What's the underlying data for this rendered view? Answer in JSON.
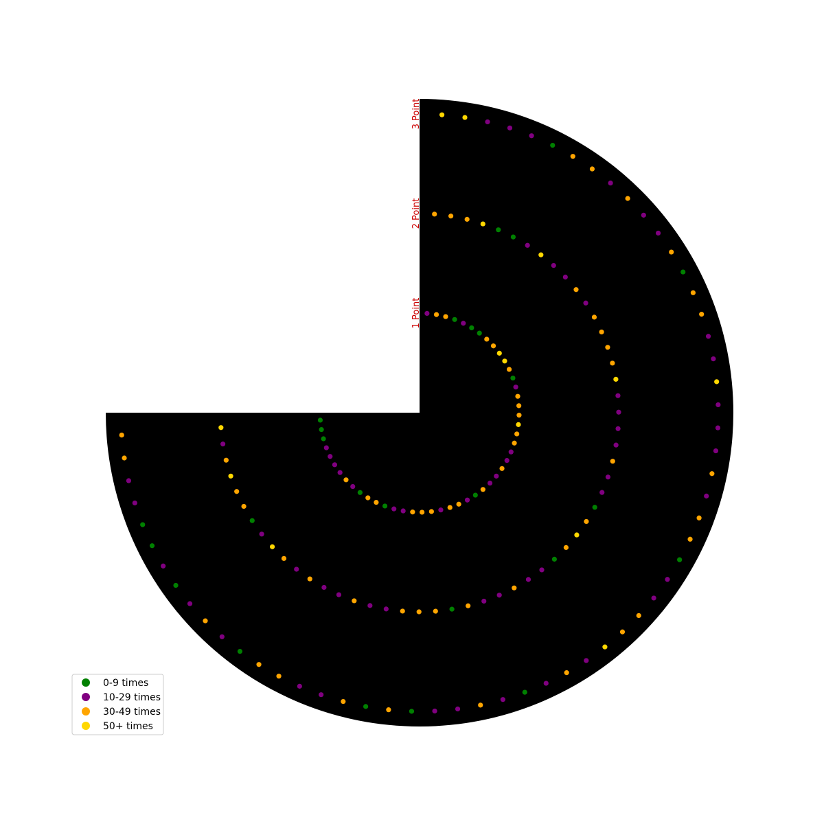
{
  "chart_data": {
    "type": "scatter",
    "projection": "polar",
    "angular_span_degrees": 270,
    "angular_start": "12 o'clock",
    "angular_direction": "clockwise",
    "angular_end": "9 o'clock",
    "background": "#000000",
    "grid": false,
    "ring_label_color": "#cc0000",
    "legend_position": "lower-left",
    "bins": [
      {
        "label": "0-9 times",
        "color": "#008000"
      },
      {
        "label": "10-29 times",
        "color": "#800080"
      },
      {
        "label": "30-49 times",
        "color": "#ffa500"
      },
      {
        "label": "50+ times",
        "color": "#ffd700"
      }
    ],
    "rings": [
      {
        "label": "1 Point",
        "radius": 1,
        "points": [
          1,
          2,
          2,
          0,
          1,
          0,
          0,
          2,
          2,
          3,
          3,
          2,
          0,
          1,
          2,
          2,
          2,
          3,
          2,
          2,
          1,
          1,
          2,
          1,
          1,
          2,
          0,
          1,
          2,
          2,
          1,
          2,
          2,
          2,
          1,
          1,
          0,
          2,
          2,
          0,
          1,
          2,
          1,
          1,
          1,
          1,
          0,
          0,
          0
        ]
      },
      {
        "label": "2 Point",
        "radius": 2,
        "points": [
          2,
          2,
          2,
          3,
          0,
          0,
          1,
          3,
          1,
          1,
          2,
          1,
          2,
          2,
          2,
          2,
          3,
          1,
          1,
          1,
          1,
          2,
          1,
          1,
          0,
          2,
          3,
          2,
          0,
          1,
          1,
          2,
          1,
          1,
          2,
          0,
          2,
          2,
          2,
          1,
          1,
          2,
          1,
          1,
          2,
          1,
          2,
          3,
          1,
          0,
          2,
          2,
          3,
          2,
          1,
          3
        ]
      },
      {
        "label": "3 Point",
        "radius": 3,
        "points": [
          3,
          3,
          1,
          1,
          1,
          0,
          2,
          2,
          1,
          2,
          1,
          1,
          2,
          0,
          2,
          2,
          1,
          1,
          3,
          1,
          1,
          1,
          2,
          1,
          2,
          2,
          0,
          1,
          1,
          2,
          2,
          3,
          1,
          2,
          1,
          0,
          1,
          2,
          1,
          1,
          0,
          2,
          0,
          2,
          1,
          1,
          2,
          2,
          0,
          1,
          2,
          1,
          0,
          1,
          0,
          0,
          1,
          1,
          2,
          2
        ]
      }
    ]
  }
}
